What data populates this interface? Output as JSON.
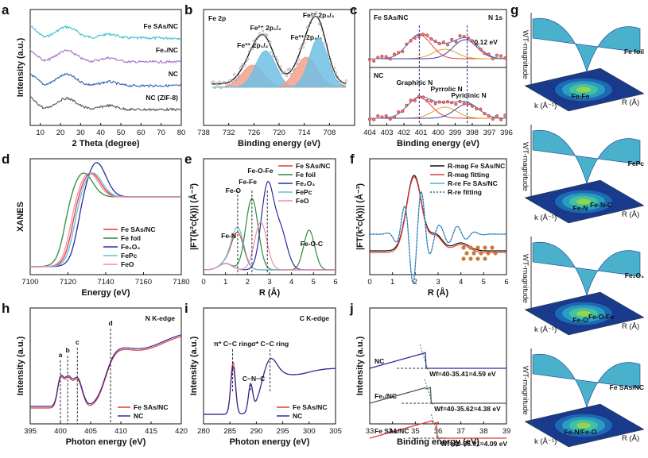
{
  "figure": {
    "panel_letters": [
      "a",
      "b",
      "c",
      "d",
      "e",
      "f",
      "g",
      "h",
      "i",
      "j"
    ]
  },
  "chart_data": [
    {
      "id": "a",
      "type": "line",
      "xlabel": "2 Theta (degree)",
      "ylabel": "Intensity (a.u.)",
      "xlim": [
        5,
        80
      ],
      "xticks": [
        10,
        20,
        30,
        40,
        50,
        60,
        70,
        80
      ],
      "series": [
        {
          "name": "Fe SAs/NC",
          "color": "#3cbfcf",
          "offset": 3.0
        },
        {
          "name": "Fe₁/NC",
          "color": "#a56fc8",
          "offset": 2.0
        },
        {
          "name": "NC",
          "color": "#2f63b8",
          "offset": 1.0
        },
        {
          "name": "NC (ZIF-8)",
          "color": "#555555",
          "offset": 0.0
        }
      ]
    },
    {
      "id": "b",
      "type": "area",
      "title": "Fe 2p",
      "xlabel": "Binding energy (eV)",
      "xlim": [
        738,
        702
      ],
      "xticks": [
        738,
        732,
        726,
        720,
        714,
        708
      ],
      "peaks": [
        {
          "label": "Fe³⁺ 2p₁/₂",
          "center": 726.3,
          "color": "#f2a08a"
        },
        {
          "label": "Fe²⁺ 2p₁/₂",
          "center": 723.2,
          "color": "#6ec0e4"
        },
        {
          "label": "Fe³⁺ 2p₃/₂",
          "center": 713.5,
          "color": "#f2a08a"
        },
        {
          "label": "Fe²⁺ 2p₃/₂",
          "center": 710.6,
          "color": "#6ec0e4"
        }
      ]
    },
    {
      "id": "c",
      "type": "line",
      "xlabel": "Binding energy (eV)",
      "xlim": [
        404,
        396
      ],
      "xticks": [
        404,
        403,
        402,
        401,
        400,
        399,
        398,
        397,
        396
      ],
      "top_label": "Fe SAs/NC",
      "bottom_label": "NC",
      "corner_label": "N 1s",
      "shift_label": "0.12 eV",
      "components": [
        {
          "label": "Graphitic N",
          "center": 401.1,
          "color": "#e0413a"
        },
        {
          "label": "Pyrrolic N",
          "center": 399.6,
          "color": "#e0a020"
        },
        {
          "label": "Pyridinic N",
          "center": 398.3,
          "color": "#3c3fa8"
        }
      ],
      "dashed_x": [
        401.1,
        398.3
      ]
    },
    {
      "id": "d",
      "type": "line",
      "xlabel": "Energy (eV)",
      "ylabel": "XANES",
      "xlim": [
        7100,
        7180
      ],
      "xticks": [
        7100,
        7120,
        7140,
        7160,
        7180
      ],
      "series": [
        {
          "name": "Fe SAs/NC",
          "color": "#e53935"
        },
        {
          "name": "Fe foil",
          "color": "#2e8b3a"
        },
        {
          "name": "Fe₂O₃",
          "color": "#2a2aa0"
        },
        {
          "name": "FePc",
          "color": "#5bc1de"
        },
        {
          "name": "FeO",
          "color": "#f08cb0"
        }
      ]
    },
    {
      "id": "e",
      "type": "line",
      "xlabel": "R (Å)",
      "ylabel": "|FT(k²c(k))| (Å⁻³)",
      "xlim": [
        0,
        6
      ],
      "xticks": [
        0,
        1,
        2,
        3,
        4,
        5,
        6
      ],
      "series": [
        {
          "name": "Fe SAs/NC",
          "color": "#e53935",
          "peak": 1.55
        },
        {
          "name": "Fe foil",
          "color": "#2e8b3a",
          "peak": 2.2
        },
        {
          "name": "Fe₂O₃",
          "color": "#2a2aa0",
          "peak": 2.9
        },
        {
          "name": "FePc",
          "color": "#5bc1de",
          "peak": 1.55
        },
        {
          "name": "FeO",
          "color": "#f08cb0",
          "peak": 2.6
        }
      ],
      "annotations": [
        "Fe-O-Fe",
        "Fe-Fe",
        "Fe-O",
        "Fe-N",
        "Fe-O-C"
      ]
    },
    {
      "id": "f",
      "type": "line",
      "xlabel": "R (Å)",
      "ylabel": "|FT(k²c(k))| (Å⁻³)",
      "xlim": [
        0,
        6
      ],
      "xticks": [
        0,
        1,
        2,
        3,
        4,
        5,
        6
      ],
      "series": [
        {
          "name": "R-mag Fe SAs/NC",
          "color": "#111111"
        },
        {
          "name": "R-mag fitting",
          "color": "#e53935"
        },
        {
          "name": "R-re Fe SAs/NC",
          "color": "#5aa7d6"
        },
        {
          "name": "R-re fitting",
          "color": "#2a6fa8"
        }
      ]
    },
    {
      "id": "g",
      "type": "heatmap",
      "axis_labels": {
        "z": "WT-magnitude",
        "x": "k (Å⁻¹)",
        "y": "R (Å)"
      },
      "subplots": [
        {
          "name": "Fe foil",
          "peaks": [
            "Fe-Fe"
          ]
        },
        {
          "name": "FePc",
          "peaks": [
            "Fe-N",
            "Fe-N-C"
          ]
        },
        {
          "name": "Fe₂O₃",
          "peaks": [
            "Fe-O",
            "Fe-O-Fe"
          ]
        },
        {
          "name": "Fe SAs/NC",
          "peaks": [
            "Fe-N/Fe-O"
          ]
        }
      ]
    },
    {
      "id": "h",
      "type": "line",
      "title": "N K-edge",
      "xlabel": "Photon energy (eV)",
      "ylabel": "Intensity (a.u.)",
      "xlim": [
        395,
        420
      ],
      "xticks": [
        395,
        400,
        405,
        410,
        415,
        420
      ],
      "series": [
        {
          "name": "Fe SAs/NC",
          "color": "#e53935"
        },
        {
          "name": "NC",
          "color": "#2a2aa0"
        }
      ],
      "peak_labels": [
        {
          "label": "a",
          "x": 400.0
        },
        {
          "label": "b",
          "x": 401.2
        },
        {
          "label": "c",
          "x": 402.8
        },
        {
          "label": "d",
          "x": 408.3
        }
      ]
    },
    {
      "id": "i",
      "type": "line",
      "title": "C K-edge",
      "xlabel": "Photon energy (eV)",
      "ylabel": "Intensity (a.u.)",
      "xlim": [
        280,
        305
      ],
      "xticks": [
        280,
        285,
        290,
        295,
        300,
        305
      ],
      "series": [
        {
          "name": "Fe SAs/NC",
          "color": "#e53935"
        },
        {
          "name": "NC",
          "color": "#2a2aa0"
        }
      ],
      "annotations": [
        {
          "label": "π* C−C ring",
          "x": 285.5
        },
        {
          "label": "C−N−C",
          "x": 288.9
        },
        {
          "label": "σ* C−C ring",
          "x": 292.6
        }
      ]
    },
    {
      "id": "j",
      "type": "line",
      "xlabel": "Binding energy (eV)",
      "ylabel": "Intensity (a.u.)",
      "xlim": [
        33,
        39
      ],
      "xticks": [
        33,
        34,
        35,
        36,
        37,
        38,
        39
      ],
      "series": [
        {
          "name": "NC",
          "color": "#2a2aa0",
          "cutoff": 35.41,
          "wf": "Wf=40-35.41=4.59 eV"
        },
        {
          "name": "Fe₁/NC",
          "color": "#555555",
          "cutoff": 35.62,
          "wf": "Wf=40-35.62=4.38 eV"
        },
        {
          "name": "Fe SAs/NC",
          "color": "#e53935",
          "cutoff": 35.91,
          "wf": "Wf=40-35.91=4.09 eV"
        }
      ]
    }
  ]
}
